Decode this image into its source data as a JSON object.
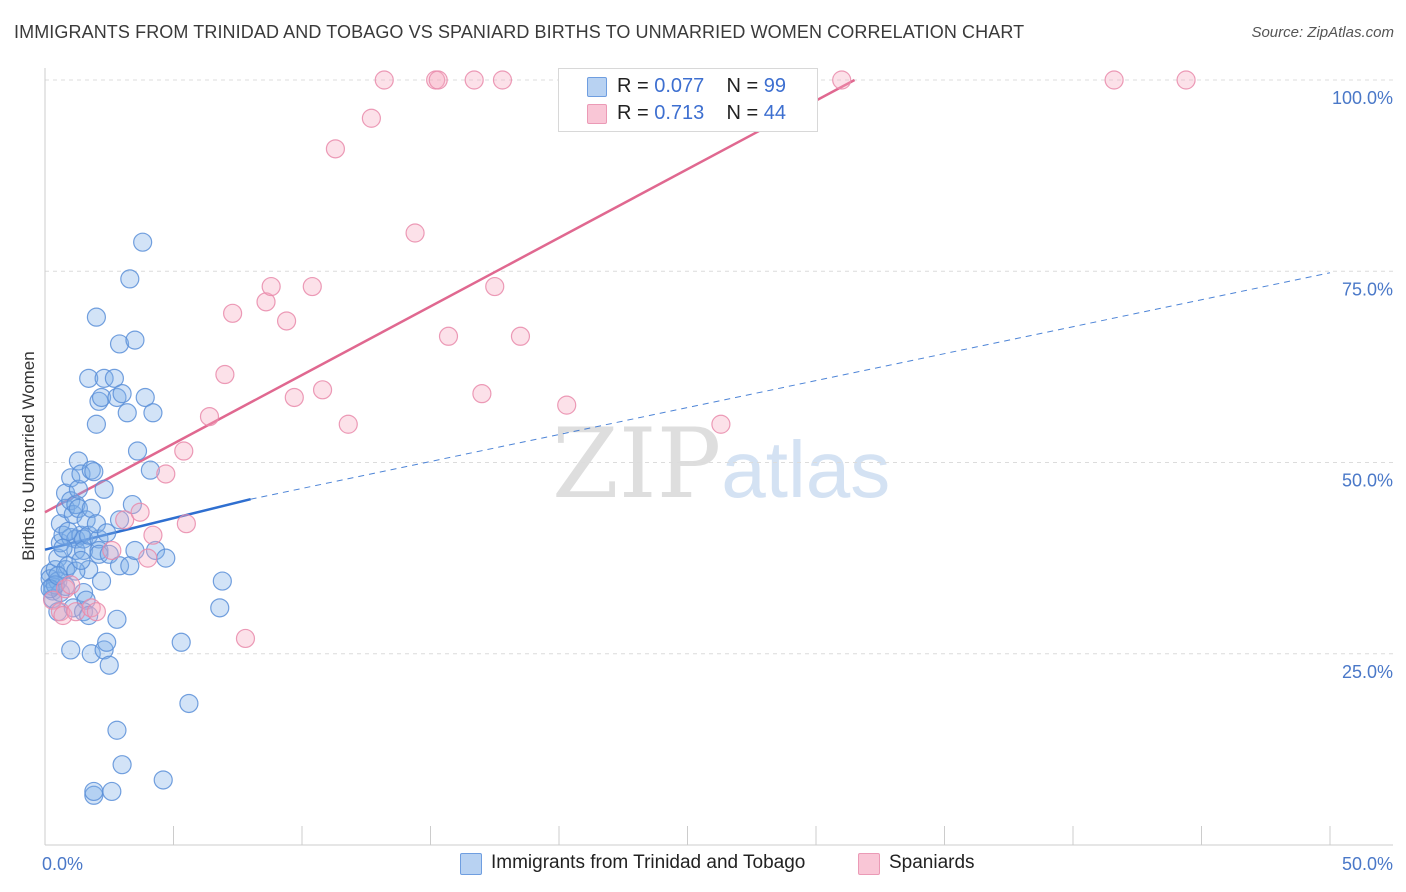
{
  "chart_data": {
    "type": "scatter",
    "title": "IMMIGRANTS FROM TRINIDAD AND TOBAGO VS SPANIARD BIRTHS TO UNMARRIED WOMEN CORRELATION CHART",
    "source": "Source: ZipAtlas.com",
    "xlabel": "",
    "ylabel": "Births to Unmarried Women",
    "xlim": [
      0,
      50
    ],
    "ylim": [
      0,
      100
    ],
    "x_ticks": [
      0,
      5,
      10,
      15,
      20,
      25,
      30,
      35,
      40,
      45,
      50
    ],
    "x_tick_labels": {
      "start": "0.0%",
      "end": "50.0%"
    },
    "y_ticks": [
      25,
      50,
      75,
      100
    ],
    "y_tick_labels": [
      "25.0%",
      "50.0%",
      "75.0%",
      "100.0%"
    ],
    "grid": true,
    "legend": {
      "position": "top-center",
      "rows": [
        {
          "r_label": "R = ",
          "r_value": "0.077",
          "n_label": "N = ",
          "n_value": "99"
        },
        {
          "r_label": "R = ",
          "r_value": "0.713",
          "n_label": "N = ",
          "n_value": "44"
        }
      ]
    },
    "series": [
      {
        "name": "Immigrants from Trinidad and Tobago",
        "color": "#7eaee8",
        "line_color": "#2f6fd0",
        "trend": {
          "x0": 0,
          "y0": 38.6,
          "x1": 8,
          "y1": 45.2,
          "dashed_to_x": 50,
          "dashed_to_y": 74.8
        },
        "points": [
          [
            0.2,
            35.5
          ],
          [
            0.2,
            34.8
          ],
          [
            0.3,
            33.8
          ],
          [
            0.3,
            33.2
          ],
          [
            0.3,
            32.2
          ],
          [
            0.4,
            36.0
          ],
          [
            0.5,
            30.5
          ],
          [
            0.5,
            34.5
          ],
          [
            0.6,
            33.0
          ],
          [
            0.5,
            37.5
          ],
          [
            0.6,
            39.5
          ],
          [
            0.6,
            42.0
          ],
          [
            0.7,
            40.5
          ],
          [
            0.8,
            46.0
          ],
          [
            0.8,
            44.0
          ],
          [
            0.8,
            36.0
          ],
          [
            0.9,
            36.5
          ],
          [
            1.0,
            48.0
          ],
          [
            1.0,
            45.0
          ],
          [
            1.0,
            40.2
          ],
          [
            1.1,
            43.2
          ],
          [
            1.1,
            31.0
          ],
          [
            1.0,
            25.5
          ],
          [
            1.2,
            44.5
          ],
          [
            1.2,
            40.0
          ],
          [
            1.2,
            38.5
          ],
          [
            1.3,
            50.2
          ],
          [
            1.3,
            46.5
          ],
          [
            1.3,
            44.0
          ],
          [
            1.4,
            48.5
          ],
          [
            1.4,
            40.5
          ],
          [
            1.5,
            40.0
          ],
          [
            1.5,
            38.5
          ],
          [
            1.5,
            33.0
          ],
          [
            1.6,
            32.0
          ],
          [
            1.6,
            42.5
          ],
          [
            1.5,
            30.5
          ],
          [
            1.7,
            61.0
          ],
          [
            1.7,
            40.5
          ],
          [
            1.7,
            30.0
          ],
          [
            1.7,
            36.0
          ],
          [
            1.8,
            49.0
          ],
          [
            1.8,
            44.0
          ],
          [
            1.8,
            25.0
          ],
          [
            1.9,
            48.8
          ],
          [
            1.9,
            6.5
          ],
          [
            1.9,
            7.0
          ],
          [
            2.0,
            55.0
          ],
          [
            2.0,
            69.0
          ],
          [
            2.1,
            40.0
          ],
          [
            2.1,
            38.5
          ],
          [
            2.1,
            38.0
          ],
          [
            2.1,
            58.0
          ],
          [
            2.2,
            34.5
          ],
          [
            2.2,
            58.5
          ],
          [
            2.3,
            61.0
          ],
          [
            2.3,
            25.5
          ],
          [
            2.3,
            46.5
          ],
          [
            2.4,
            26.5
          ],
          [
            2.5,
            38.0
          ],
          [
            2.5,
            23.5
          ],
          [
            2.6,
            7.0
          ],
          [
            2.7,
            61.0
          ],
          [
            2.8,
            58.5
          ],
          [
            2.8,
            15.0
          ],
          [
            2.8,
            29.5
          ],
          [
            2.9,
            65.5
          ],
          [
            2.9,
            42.5
          ],
          [
            2.9,
            36.5
          ],
          [
            3.0,
            10.5
          ],
          [
            3.0,
            59.0
          ],
          [
            3.2,
            56.5
          ],
          [
            3.3,
            74.0
          ],
          [
            3.3,
            36.5
          ],
          [
            3.4,
            44.5
          ],
          [
            3.5,
            66.0
          ],
          [
            3.5,
            38.5
          ],
          [
            3.6,
            51.5
          ],
          [
            3.8,
            78.8
          ],
          [
            3.9,
            58.5
          ],
          [
            4.1,
            49.0
          ],
          [
            4.2,
            56.5
          ],
          [
            4.3,
            38.5
          ],
          [
            4.6,
            8.5
          ],
          [
            4.7,
            37.5
          ],
          [
            5.3,
            26.5
          ],
          [
            5.6,
            18.5
          ],
          [
            6.8,
            31.0
          ],
          [
            6.9,
            34.5
          ],
          [
            0.8,
            33.8
          ],
          [
            1.2,
            35.8
          ],
          [
            0.4,
            34.0
          ],
          [
            0.9,
            41.0
          ],
          [
            2.0,
            42.0
          ],
          [
            0.7,
            38.8
          ],
          [
            1.4,
            37.2
          ],
          [
            0.2,
            33.5
          ],
          [
            0.5,
            35.2
          ],
          [
            2.4,
            40.8
          ]
        ]
      },
      {
        "name": "Spaniards",
        "color": "#f5a8c0",
        "line_color": "#e06890",
        "trend": {
          "x0": 0,
          "y0": 43.5,
          "x1": 31.5,
          "y1": 100.0
        },
        "points": [
          [
            0.3,
            32.0
          ],
          [
            0.6,
            30.5
          ],
          [
            0.7,
            30.0
          ],
          [
            0.8,
            33.5
          ],
          [
            1.0,
            34.0
          ],
          [
            1.2,
            30.5
          ],
          [
            1.8,
            31.0
          ],
          [
            2.0,
            30.5
          ],
          [
            2.6,
            38.5
          ],
          [
            3.1,
            42.5
          ],
          [
            3.7,
            43.5
          ],
          [
            4.0,
            37.5
          ],
          [
            4.2,
            40.5
          ],
          [
            4.7,
            48.5
          ],
          [
            5.5,
            42.0
          ],
          [
            5.4,
            51.5
          ],
          [
            6.4,
            56.0
          ],
          [
            7.0,
            61.5
          ],
          [
            7.3,
            69.5
          ],
          [
            7.8,
            27.0
          ],
          [
            8.6,
            71.0
          ],
          [
            8.8,
            73.0
          ],
          [
            9.4,
            68.5
          ],
          [
            9.7,
            58.5
          ],
          [
            10.4,
            73.0
          ],
          [
            10.8,
            59.5
          ],
          [
            11.3,
            91.0
          ],
          [
            11.8,
            55.0
          ],
          [
            12.7,
            95.0
          ],
          [
            13.2,
            100.0
          ],
          [
            14.4,
            80.0
          ],
          [
            15.2,
            100.0
          ],
          [
            15.3,
            100.0
          ],
          [
            15.7,
            66.5
          ],
          [
            16.7,
            100.0
          ],
          [
            17.0,
            59.0
          ],
          [
            17.5,
            73.0
          ],
          [
            17.8,
            100.0
          ],
          [
            18.5,
            66.5
          ],
          [
            20.3,
            57.5
          ],
          [
            26.3,
            55.0
          ],
          [
            31.0,
            100.0
          ],
          [
            41.6,
            100.0
          ],
          [
            44.4,
            100.0
          ]
        ]
      }
    ]
  }
}
